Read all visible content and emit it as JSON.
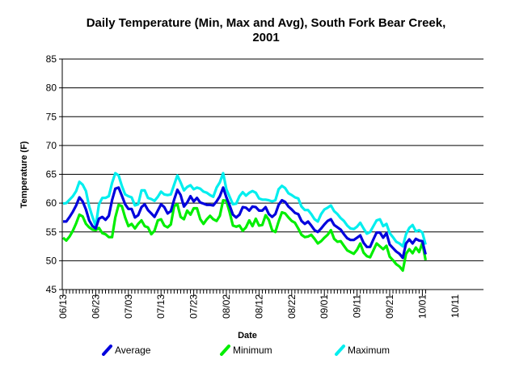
{
  "chart_data": {
    "type": "line",
    "title_line1": "Daily Temperature (Min, Max and Avg), South Fork Bear Creek,",
    "title_line2": "2001",
    "xlabel": "Date",
    "ylabel": "Temperature (F)",
    "ylim": [
      45,
      85
    ],
    "yticks": [
      "45",
      "50",
      "55",
      "60",
      "65",
      "70",
      "75",
      "80",
      "85"
    ],
    "xlim": [
      "06/13",
      "10/20"
    ],
    "xticks": [
      "06/13",
      "06/23",
      "07/03",
      "07/13",
      "07/23",
      "08/02",
      "08/12",
      "08/22",
      "09/01",
      "09/11",
      "09/21",
      "10/01",
      "10/11"
    ],
    "grid": "horizontal",
    "legend_position": "bottom",
    "start_date": "06/13",
    "series": [
      {
        "name": "Average",
        "color": "#0000dd",
        "values": [
          56.8,
          56.8,
          57.6,
          58.5,
          59.6,
          61.0,
          60.3,
          58.9,
          57.0,
          56.0,
          55.6,
          57.3,
          57.6,
          57.1,
          57.8,
          60.5,
          62.5,
          62.7,
          61.3,
          59.8,
          59.0,
          59.0,
          57.5,
          57.9,
          59.3,
          59.8,
          58.8,
          58.2,
          57.6,
          58.7,
          59.8,
          59.3,
          58.2,
          58.6,
          60.6,
          62.3,
          61.4,
          59.4,
          60.1,
          61.2,
          60.3,
          60.9,
          60.1,
          59.9,
          59.7,
          59.7,
          59.6,
          60.3,
          61.2,
          62.7,
          61.0,
          59.6,
          58.0,
          57.5,
          58.0,
          59.3,
          59.2,
          58.7,
          59.4,
          59.3,
          58.7,
          58.7,
          59.3,
          58.1,
          57.6,
          58.1,
          59.7,
          60.5,
          60.2,
          59.4,
          58.9,
          58.3,
          58.1,
          56.9,
          56.4,
          56.8,
          56.1,
          55.3,
          55.0,
          55.6,
          56.3,
          56.9,
          57.2,
          56.2,
          55.8,
          55.4,
          54.6,
          53.9,
          53.6,
          53.6,
          54.0,
          54.4,
          53.1,
          52.4,
          52.4,
          53.7,
          54.9,
          54.9,
          54.0,
          54.8,
          52.8,
          52.2,
          51.6,
          51.2,
          50.5,
          53.0,
          53.7,
          53.0,
          53.8,
          53.5,
          53.4,
          51.1
        ]
      },
      {
        "name": "Minimum",
        "color": "#00ee00",
        "values": [
          54.0,
          53.5,
          54.2,
          55.2,
          56.5,
          58.0,
          57.7,
          56.4,
          55.8,
          55.4,
          55.3,
          55.7,
          54.8,
          54.6,
          54.1,
          54.1,
          57.5,
          59.7,
          59.5,
          57.5,
          56.0,
          56.4,
          55.6,
          56.4,
          57.0,
          56.0,
          55.8,
          54.6,
          55.2,
          57.0,
          57.2,
          56.1,
          55.8,
          56.3,
          59.5,
          59.8,
          57.6,
          57.2,
          58.7,
          58.0,
          59.1,
          59.1,
          57.2,
          56.4,
          57.2,
          57.8,
          57.2,
          56.9,
          57.8,
          60.5,
          60.4,
          58.4,
          56.1,
          55.9,
          56.1,
          55.2,
          55.8,
          57.0,
          56.0,
          57.3,
          56.1,
          56.2,
          57.9,
          57.1,
          55.3,
          55.0,
          56.8,
          58.4,
          58.2,
          57.5,
          56.9,
          56.6,
          55.6,
          54.5,
          54.1,
          54.2,
          54.5,
          53.8,
          53.0,
          53.4,
          54.0,
          54.5,
          55.3,
          53.8,
          53.3,
          53.4,
          52.6,
          51.8,
          51.5,
          51.2,
          51.9,
          53.0,
          51.4,
          50.8,
          50.6,
          51.8,
          53.0,
          52.5,
          52.0,
          52.6,
          50.7,
          50.1,
          49.4,
          49.0,
          48.3,
          51.2,
          52.0,
          51.3,
          52.3,
          51.5,
          53.1,
          50.1
        ]
      },
      {
        "name": "Maximum",
        "color": "#00eeee",
        "values": [
          59.9,
          60.0,
          60.6,
          61.2,
          62.1,
          63.7,
          63.2,
          62.1,
          59.4,
          57.6,
          56.0,
          59.8,
          60.9,
          60.9,
          61.2,
          63.5,
          65.2,
          64.8,
          63.0,
          61.5,
          61.2,
          61.0,
          59.6,
          59.8,
          62.2,
          62.2,
          60.9,
          60.7,
          60.4,
          61.1,
          62.0,
          61.5,
          61.4,
          61.5,
          63.2,
          64.8,
          63.6,
          62.2,
          62.8,
          63.1,
          62.4,
          62.7,
          62.5,
          62.0,
          61.8,
          61.4,
          61.1,
          62.7,
          63.6,
          65.2,
          62.4,
          61.1,
          59.8,
          59.9,
          61.2,
          61.9,
          61.3,
          61.8,
          62.1,
          61.8,
          60.8,
          60.6,
          60.6,
          60.5,
          60.3,
          60.5,
          62.4,
          63.0,
          62.6,
          61.7,
          61.4,
          61.0,
          60.8,
          59.4,
          58.8,
          58.8,
          58.1,
          57.2,
          56.8,
          58.1,
          58.9,
          59.2,
          59.6,
          58.6,
          58.1,
          57.4,
          56.9,
          56.1,
          55.6,
          55.5,
          55.9,
          56.6,
          55.6,
          54.7,
          55.0,
          56.0,
          57.0,
          57.2,
          56.0,
          56.4,
          54.8,
          54.1,
          53.3,
          53.0,
          52.5,
          54.6,
          55.7,
          56.2,
          55.1,
          55.3,
          54.9,
          52.8
        ]
      }
    ]
  }
}
